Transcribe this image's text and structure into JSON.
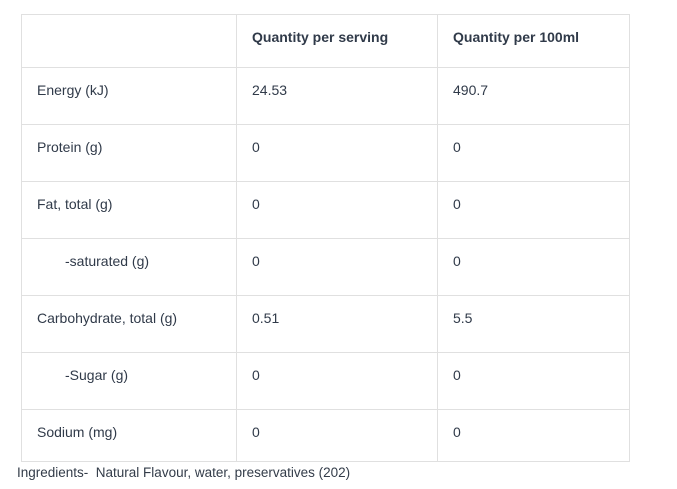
{
  "colors": {
    "background": "#ffffff",
    "border": "#e0e0e0",
    "text": "#303a49"
  },
  "table": {
    "columns": [
      "",
      "Quantity per serving",
      "Quantity per 100ml"
    ],
    "rows": [
      {
        "label": "Energy (kJ)",
        "indent": false,
        "per_serving": "24.53",
        "per_100ml": "490.7"
      },
      {
        "label": "Protein (g)",
        "indent": false,
        "per_serving": "0",
        "per_100ml": "0"
      },
      {
        "label": "Fat, total (g)",
        "indent": false,
        "per_serving": "0",
        "per_100ml": "0"
      },
      {
        "label": "-saturated (g)",
        "indent": true,
        "per_serving": "0",
        "per_100ml": "0"
      },
      {
        "label": "Carbohydrate, total (g)",
        "indent": false,
        "per_serving": "0.51",
        "per_100ml": "5.5"
      },
      {
        "label": "-Sugar (g)",
        "indent": true,
        "per_serving": "0",
        "per_100ml": "0"
      },
      {
        "label": "Sodium (mg)",
        "indent": false,
        "per_serving": "0",
        "per_100ml": "0"
      }
    ]
  },
  "footer": {
    "ingredients": "Ingredients-  Natural Flavour, water, preservatives (202)"
  }
}
